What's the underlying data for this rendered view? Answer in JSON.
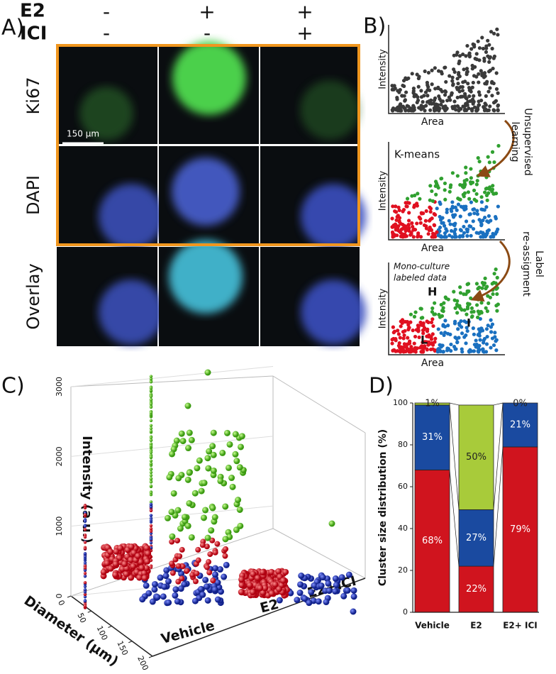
{
  "panel_a": {
    "label": "A)",
    "rows_header": [
      {
        "name": "E2",
        "signs": [
          "-",
          "+",
          "+"
        ]
      },
      {
        "name": "ICI",
        "signs": [
          "-",
          "-",
          "+"
        ]
      }
    ],
    "row_labels": [
      "Ki67",
      "DAPI",
      "Overlay"
    ],
    "scale_bar": "150 μm"
  },
  "panel_b": {
    "label": "B)",
    "y_label": "Intensity",
    "x_label": "Area",
    "step1": [
      "Unsupervised",
      "learning"
    ],
    "step2": [
      "Label",
      "re-assigment"
    ],
    "kmeans": "K-means",
    "mono": [
      "Mono-culture",
      "labeled data"
    ],
    "clusters": [
      "H",
      "I",
      "L"
    ]
  },
  "panel_c": {
    "label": "C)",
    "z_label": "Intensity (a.u.)",
    "diameter_label": "Diameter (μm)",
    "zlim": [
      0,
      3000
    ],
    "zticks": [
      0,
      1000,
      2000,
      3000
    ],
    "dlim": [
      0,
      200
    ],
    "dticks": [
      0,
      50,
      100,
      150,
      200
    ],
    "categories": [
      "Vehicle",
      "E2",
      "E2+ICI"
    ]
  },
  "panel_d": {
    "label": "D)",
    "chart_data": {
      "type": "bar",
      "stacked": true,
      "y_label": "Cluster size distribution (%)",
      "categories": [
        "Vehicle",
        "E2",
        "E2+ ICI"
      ],
      "series": [
        {
          "color": "#d0141e",
          "values": [
            68,
            22,
            79
          ],
          "value_labels": [
            "68%",
            "22%",
            "79%"
          ]
        },
        {
          "color": "#1a4aa0",
          "values": [
            31,
            27,
            21
          ],
          "value_labels": [
            "31%",
            "27%",
            "21%"
          ]
        },
        {
          "color": "#a8cb3a",
          "values": [
            1,
            50,
            0
          ],
          "value_labels": [
            "1%",
            "50%",
            "0%"
          ]
        }
      ],
      "ylim": [
        0,
        100
      ],
      "yticks": [
        0,
        20,
        40,
        60,
        80,
        100
      ]
    }
  }
}
